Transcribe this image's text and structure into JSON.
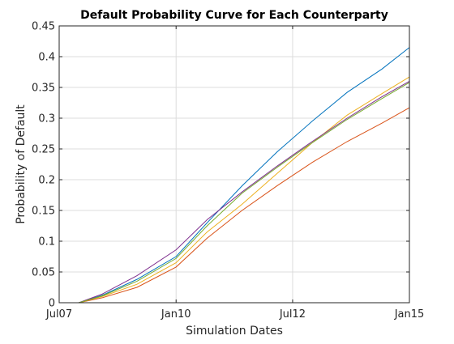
{
  "chart_data": {
    "type": "line",
    "title": "Default Probability Curve for Each Counterparty",
    "xlabel": "Simulation Dates",
    "ylabel": "Probability of Default",
    "xlim": [
      "2007-07-01",
      "2015-01-01"
    ],
    "ylim": [
      0,
      0.45
    ],
    "xticks": [
      {
        "date": "2007-07-01",
        "label": "Jul07"
      },
      {
        "date": "2010-01-01",
        "label": "Jan10"
      },
      {
        "date": "2012-07-01",
        "label": "Jul12"
      },
      {
        "date": "2015-01-01",
        "label": "Jan15"
      }
    ],
    "yticks": [
      0,
      0.05,
      0.1,
      0.15,
      0.2,
      0.25,
      0.3,
      0.35,
      0.4,
      0.45
    ],
    "ytick_labels": [
      "0",
      "0.05",
      "0.1",
      "0.15",
      "0.2",
      "0.25",
      "0.3",
      "0.35",
      "0.4",
      "0.45"
    ],
    "grid": true,
    "x": [
      "2007-12-01",
      "2008-06-01",
      "2009-03-01",
      "2010-01-01",
      "2010-09-01",
      "2011-06-01",
      "2012-03-01",
      "2012-12-01",
      "2013-09-01",
      "2014-06-01",
      "2015-01-01"
    ],
    "series": [
      {
        "color": "#0072BD",
        "values": [
          0,
          0.012,
          0.038,
          0.075,
          0.13,
          0.19,
          0.245,
          0.295,
          0.342,
          0.38,
          0.415
        ]
      },
      {
        "color": "#D95319",
        "values": [
          0,
          0.008,
          0.025,
          0.058,
          0.105,
          0.15,
          0.19,
          0.228,
          0.262,
          0.292,
          0.317
        ]
      },
      {
        "color": "#EDB120",
        "values": [
          0,
          0.01,
          0.03,
          0.065,
          0.115,
          0.16,
          0.21,
          0.26,
          0.305,
          0.34,
          0.367
        ]
      },
      {
        "color": "#7E2F8E",
        "values": [
          0,
          0.014,
          0.044,
          0.086,
          0.135,
          0.18,
          0.222,
          0.262,
          0.3,
          0.335,
          0.36
        ]
      },
      {
        "color": "#77AC30",
        "values": [
          0,
          0.011,
          0.035,
          0.072,
          0.125,
          0.178,
          0.22,
          0.26,
          0.298,
          0.332,
          0.358
        ]
      }
    ]
  }
}
